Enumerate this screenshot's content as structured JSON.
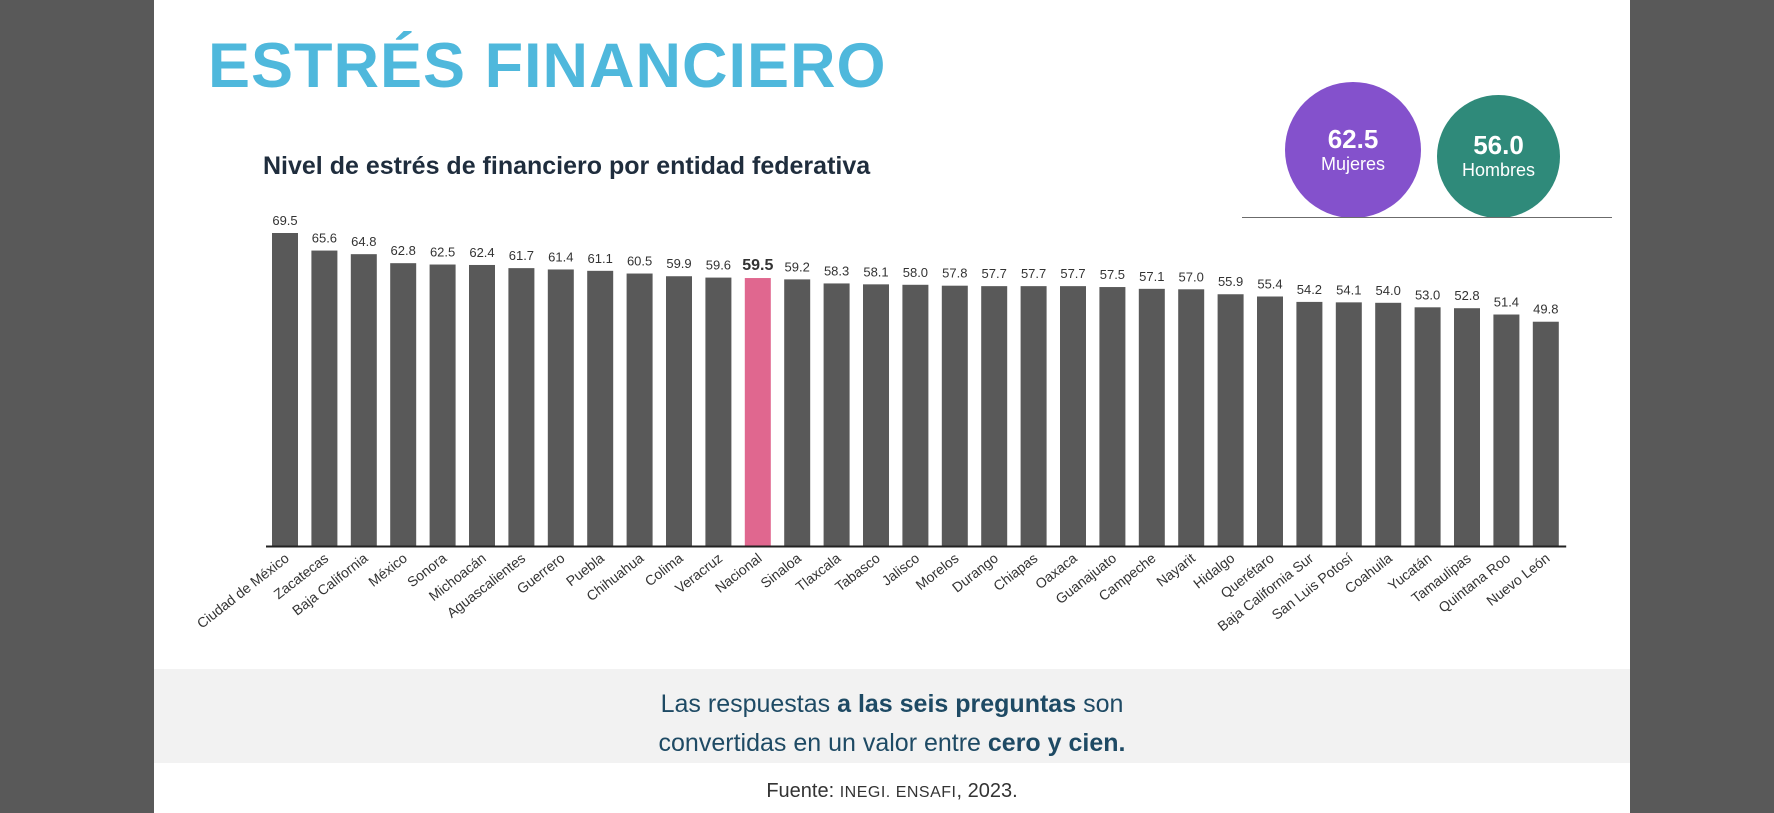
{
  "title": "ESTRÉS FINANCIERO",
  "subtitle": "Nivel de estrés de financiero por entidad federativa",
  "highlights": {
    "women": {
      "value": "62.5",
      "label": "Mujeres",
      "color": "#8451cc"
    },
    "men": {
      "value": "56.0",
      "label": "Hombres",
      "color": "#2f8a7a"
    }
  },
  "note": {
    "line1_a": "Las respuestas ",
    "line1_b": "a las seis preguntas",
    "line1_c": " son",
    "line2_a": "convertidas en un valor entre ",
    "line2_b": "cero y cien."
  },
  "source": {
    "prefix": "Fuente: ",
    "org": "INEGI. ENSAFI",
    "year": ", 2023."
  },
  "chart_data": {
    "type": "bar",
    "title": "Nivel de estrés de financiero por entidad federativa",
    "bar_color": "#595959",
    "highlight_color": "#e0678f",
    "highlight_category": "Nacional",
    "ylim": [
      0,
      69.5
    ],
    "categories": [
      "Ciudad de México",
      "Zacatecas",
      "Baja California",
      "México",
      "Sonora",
      "Michoacán",
      "Aguascalientes",
      "Guerrero",
      "Puebla",
      "Chihuahua",
      "Colima",
      "Veracruz",
      "Nacional",
      "Sinaloa",
      "Tlaxcala",
      "Tabasco",
      "Jalisco",
      "Morelos",
      "Durango",
      "Chiapas",
      "Oaxaca",
      "Guanajuato",
      "Campeche",
      "Nayarit",
      "Hidalgo",
      "Querétaro",
      "Baja California Sur",
      "San Luis Potosí",
      "Coahuila",
      "Yucatán",
      "Tamaulipas",
      "Quintana Roo",
      "Nuevo León"
    ],
    "values": [
      69.5,
      65.6,
      64.8,
      62.8,
      62.5,
      62.4,
      61.7,
      61.4,
      61.1,
      60.5,
      59.9,
      59.6,
      59.5,
      59.2,
      58.3,
      58.1,
      58.0,
      57.8,
      57.7,
      57.7,
      57.7,
      57.5,
      57.1,
      57.0,
      55.9,
      55.4,
      54.2,
      54.1,
      54.0,
      53.0,
      52.8,
      51.4,
      49.8
    ],
    "value_labels": [
      "69.5",
      "65.6",
      "64.8",
      "62.8",
      "62.5",
      "62.4",
      "61.7",
      "61.4",
      "61.1",
      "60.5",
      "59.9",
      "59.6",
      "59.5",
      "59.2",
      "58.3",
      "58.1",
      "58.0",
      "57.8",
      "57.7",
      "57.7",
      "57.7",
      "57.5",
      "57.1",
      "57.0",
      "55.9",
      "55.4",
      "54.2",
      "54.1",
      "54.0",
      "53.0",
      "52.8",
      "51.4",
      "49.8"
    ]
  }
}
